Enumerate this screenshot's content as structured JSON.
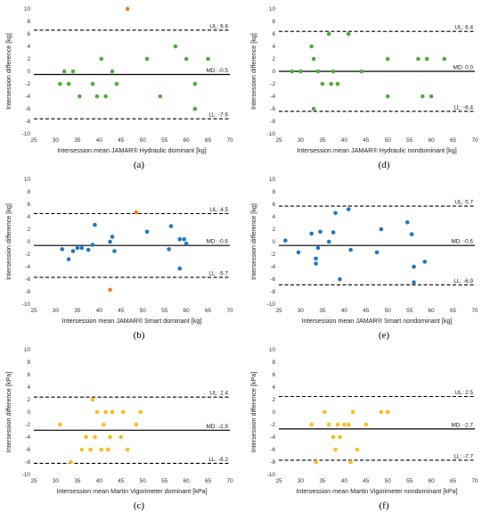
{
  "colors": {
    "green": "#4cae3a",
    "orange": "#f07c2b",
    "blue": "#2176c3",
    "yellow": "#fbbd1c"
  },
  "chart_data": [
    {
      "type": "scatter",
      "caption": "(a)",
      "xlabel": "Intersession mean JAMAR® Hydraulic dominant [kg]",
      "ylabel": "Intersession difference [kg]",
      "xlim": [
        25,
        70
      ],
      "ylim": [
        -10,
        10
      ],
      "xticks": [
        25,
        30,
        35,
        40,
        45,
        50,
        55,
        60,
        65,
        70
      ],
      "yticks": [
        -10,
        -8,
        -6,
        -4,
        -2,
        0,
        2,
        4,
        6,
        8,
        10
      ],
      "lines": [
        {
          "name": "UL",
          "label": "UL: 6.6",
          "y": 6.6,
          "style": "dashed"
        },
        {
          "name": "MD",
          "label": "MD: -0.5",
          "y": -0.5,
          "style": "solid"
        },
        {
          "name": "LL",
          "label": "LL: -7.6",
          "y": -7.6,
          "style": "dashed"
        }
      ],
      "series": [
        {
          "color": "green",
          "points": [
            [
              31,
              -2
            ],
            [
              32,
              0
            ],
            [
              33,
              -2
            ],
            [
              34,
              0
            ],
            [
              35.5,
              -4
            ],
            [
              38.5,
              -2
            ],
            [
              39.5,
              -4
            ],
            [
              40.5,
              2
            ],
            [
              41.5,
              -4
            ],
            [
              43,
              0
            ],
            [
              44,
              -2
            ],
            [
              51,
              2
            ],
            [
              54,
              -4
            ],
            [
              57.5,
              4
            ],
            [
              60,
              2
            ],
            [
              62,
              -2
            ],
            [
              62,
              -6
            ],
            [
              65,
              2
            ]
          ]
        },
        {
          "color": "orange",
          "points": [
            [
              46.5,
              10
            ]
          ]
        }
      ]
    },
    {
      "type": "scatter",
      "caption": "(d)",
      "xlabel": "Intersession mean JAMAR® Hydraulic nondominant [kg]",
      "ylabel": "Intersession difference [kg]",
      "xlim": [
        25,
        70
      ],
      "ylim": [
        -10,
        10
      ],
      "xticks": [
        25,
        30,
        35,
        40,
        45,
        50,
        55,
        60,
        65,
        70
      ],
      "yticks": [
        -10,
        -8,
        -6,
        -4,
        -2,
        0,
        2,
        4,
        6,
        8,
        10
      ],
      "lines": [
        {
          "name": "UL",
          "label": "UL: 6.4",
          "y": 6.4,
          "style": "dashed"
        },
        {
          "name": "MD",
          "label": "MD: 0.0",
          "y": 0,
          "style": "solid"
        },
        {
          "name": "LL",
          "label": "LL: -6.4",
          "y": -6.4,
          "style": "dashed"
        }
      ],
      "series": [
        {
          "color": "green",
          "points": [
            [
              28,
              0
            ],
            [
              30,
              0
            ],
            [
              32.5,
              4
            ],
            [
              33,
              2
            ],
            [
              33,
              -6
            ],
            [
              34,
              0
            ],
            [
              35,
              -2
            ],
            [
              36.5,
              6
            ],
            [
              37,
              -2
            ],
            [
              37.5,
              0
            ],
            [
              38.5,
              -2
            ],
            [
              41,
              6
            ],
            [
              44,
              0
            ],
            [
              50,
              -4
            ],
            [
              50,
              2
            ],
            [
              57,
              2
            ],
            [
              58,
              -4
            ],
            [
              59,
              2
            ],
            [
              60,
              -4
            ],
            [
              63,
              2
            ]
          ]
        }
      ]
    },
    {
      "type": "scatter",
      "caption": "(b)",
      "xlabel": "Intersession mean JAMAR® Smart dominant [kg]",
      "ylabel": "Intersession difference [kg]",
      "xlim": [
        25,
        70
      ],
      "ylim": [
        -10,
        10
      ],
      "xticks": [
        25,
        30,
        35,
        40,
        45,
        50,
        55,
        60,
        65,
        70
      ],
      "yticks": [
        -10,
        -8,
        -6,
        -4,
        -2,
        0,
        2,
        4,
        6,
        8,
        10
      ],
      "lines": [
        {
          "name": "UL",
          "label": "UL: 4.5",
          "y": 4.5,
          "style": "dashed"
        },
        {
          "name": "MD",
          "label": "MD: -0.6",
          "y": -0.6,
          "style": "solid"
        },
        {
          "name": "LL",
          "label": "LL: -5.7",
          "y": -5.7,
          "style": "dashed"
        }
      ],
      "series": [
        {
          "color": "blue",
          "points": [
            [
              31.5,
              -1.2
            ],
            [
              33,
              -2.8
            ],
            [
              34,
              -1.5
            ],
            [
              35,
              -1
            ],
            [
              36,
              -1
            ],
            [
              37.5,
              -1.3
            ],
            [
              38.5,
              -0.5
            ],
            [
              39,
              2.7
            ],
            [
              42.5,
              0
            ],
            [
              43,
              0.8
            ],
            [
              43.5,
              -1.5
            ],
            [
              51,
              1.6
            ],
            [
              56,
              -1.2
            ],
            [
              56.5,
              2.5
            ],
            [
              58.5,
              -4.3
            ],
            [
              58.5,
              0.4
            ],
            [
              59.5,
              0.4
            ],
            [
              60,
              -0.3
            ]
          ]
        },
        {
          "color": "orange",
          "points": [
            [
              42.5,
              -7.7
            ],
            [
              48.5,
              4.7
            ]
          ]
        }
      ]
    },
    {
      "type": "scatter",
      "caption": "(e)",
      "xlabel": "Intersession mean JAMAR® Smart nondominant [kg]",
      "ylabel": "Intersession difference [kg]",
      "xlim": [
        25,
        70
      ],
      "ylim": [
        -10,
        10
      ],
      "xticks": [
        25,
        30,
        35,
        40,
        45,
        50,
        55,
        60,
        65,
        70
      ],
      "yticks": [
        -10,
        -8,
        -6,
        -4,
        -2,
        0,
        2,
        4,
        6,
        8,
        10
      ],
      "lines": [
        {
          "name": "UL",
          "label": "UL: 5.7",
          "y": 5.7,
          "style": "dashed"
        },
        {
          "name": "MD",
          "label": "MD: -0.6",
          "y": -0.6,
          "style": "solid"
        },
        {
          "name": "LL",
          "label": "LL: -6.9",
          "y": -6.9,
          "style": "dashed"
        }
      ],
      "series": [
        {
          "color": "blue",
          "points": [
            [
              26.5,
              0.2
            ],
            [
              29.5,
              -1.7
            ],
            [
              32.5,
              1.3
            ],
            [
              33.5,
              -2.7
            ],
            [
              33.5,
              -3.5
            ],
            [
              34,
              -1
            ],
            [
              34.5,
              1.6
            ],
            [
              36.5,
              0
            ],
            [
              37.5,
              1.5
            ],
            [
              38,
              4.6
            ],
            [
              39,
              -6
            ],
            [
              41,
              5.2
            ],
            [
              41.5,
              -1.3
            ],
            [
              47.5,
              -1.7
            ],
            [
              48.5,
              2
            ],
            [
              54.5,
              3.1
            ],
            [
              55.5,
              1.2
            ],
            [
              56,
              -4
            ],
            [
              56,
              -6.5
            ],
            [
              58.5,
              -3.2
            ]
          ]
        }
      ]
    },
    {
      "type": "scatter",
      "caption": "(c)",
      "xlabel": "Intersession mean Martin Vigorimeter dominant [kPa]",
      "ylabel": "Intersession difference [kPa]",
      "xlim": [
        25,
        70
      ],
      "ylim": [
        -10,
        10
      ],
      "xticks": [
        25,
        30,
        35,
        40,
        45,
        50,
        55,
        60,
        65,
        70
      ],
      "yticks": [
        -10,
        -8,
        -6,
        -4,
        -2,
        0,
        2,
        4,
        6,
        8,
        10
      ],
      "lines": [
        {
          "name": "UL",
          "label": "UL: 2.4",
          "y": 2.4,
          "style": "dashed"
        },
        {
          "name": "MD",
          "label": "MD: -2.9",
          "y": -2.9,
          "style": "solid"
        },
        {
          "name": "LL",
          "label": "LL: -8.2",
          "y": -8.2,
          "style": "dashed"
        }
      ],
      "series": [
        {
          "color": "yellow",
          "points": [
            [
              31,
              -2
            ],
            [
              33.5,
              -8
            ],
            [
              36,
              -6
            ],
            [
              37,
              -4
            ],
            [
              38,
              -6
            ],
            [
              38.5,
              2
            ],
            [
              39,
              -4
            ],
            [
              39.5,
              0
            ],
            [
              40.5,
              -6
            ],
            [
              41,
              -2
            ],
            [
              41.5,
              0
            ],
            [
              42,
              -6
            ],
            [
              42.5,
              -4
            ],
            [
              43,
              0
            ],
            [
              45,
              -4
            ],
            [
              45.5,
              0
            ],
            [
              46.5,
              -6
            ],
            [
              48.5,
              -2
            ],
            [
              49.5,
              0
            ]
          ]
        }
      ]
    },
    {
      "type": "scatter",
      "caption": "(f)",
      "xlabel": "Intersession mean Martin Vigorimeter nondominant [kPa]",
      "ylabel": "Intersession difference [kPa]",
      "xlim": [
        25,
        70
      ],
      "ylim": [
        -10,
        10
      ],
      "xticks": [
        25,
        30,
        35,
        40,
        45,
        50,
        55,
        60,
        65,
        70
      ],
      "yticks": [
        -10,
        -8,
        -6,
        -4,
        -2,
        0,
        2,
        4,
        6,
        8,
        10
      ],
      "lines": [
        {
          "name": "UL",
          "label": "UL: 2.5",
          "y": 2.5,
          "style": "dashed"
        },
        {
          "name": "MD",
          "label": "MD: -2.7",
          "y": -2.7,
          "style": "solid"
        },
        {
          "name": "LL",
          "label": "LL: -7.7",
          "y": -7.7,
          "style": "dashed"
        }
      ],
      "series": [
        {
          "color": "yellow",
          "points": [
            [
              32.5,
              -2
            ],
            [
              33.5,
              -8
            ],
            [
              35.5,
              0
            ],
            [
              36.5,
              -2
            ],
            [
              37.5,
              -4
            ],
            [
              38,
              -6
            ],
            [
              38.5,
              -2
            ],
            [
              39,
              -4
            ],
            [
              40,
              -2
            ],
            [
              41,
              -2
            ],
            [
              41.5,
              -8
            ],
            [
              42,
              0
            ],
            [
              43,
              -6
            ],
            [
              45,
              -2
            ],
            [
              48.5,
              0
            ],
            [
              50,
              0
            ]
          ]
        }
      ]
    }
  ]
}
